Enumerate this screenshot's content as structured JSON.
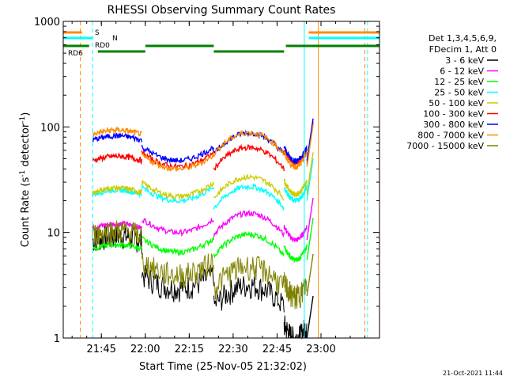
{
  "chart_data": {
    "type": "line",
    "title": "RHESSI Observing Summary Count Rates",
    "xlabel": "Start Time (25-Nov-05 21:32:02)",
    "ylabel_main": "Count Rate (s",
    "ylabel_sup1": "-1",
    "ylabel_mid": " detector",
    "ylabel_sup2": "-1",
    "ylabel_end": ")",
    "y_scale": "log",
    "ylim": [
      1,
      1000
    ],
    "xlim_minutes": [
      21.533,
      23.333
    ],
    "x_ticks": [
      {
        "label": "21:45",
        "t": 21.75
      },
      {
        "label": "22:00",
        "t": 22.0
      },
      {
        "label": "22:15",
        "t": 22.25
      },
      {
        "label": "22:30",
        "t": 22.5
      },
      {
        "label": "22:45",
        "t": 22.75
      },
      {
        "label": "23:00",
        "t": 23.0
      }
    ],
    "y_ticks": [
      {
        "label": "1",
        "v": 1
      },
      {
        "label": "10",
        "v": 10
      },
      {
        "label": "100",
        "v": 100
      },
      {
        "label": "1000",
        "v": 1000
      }
    ],
    "legend_header": [
      "Det 1,3,4,5,6,9,",
      "FDecim 1, Att 0"
    ],
    "series": [
      {
        "name": "3 - 6 keV",
        "color": "#000000",
        "level": [
          8.5,
          3.0,
          2.0,
          1.0
        ]
      },
      {
        "name": "6 - 12 keV",
        "color": "#ff00ff",
        "level": [
          11,
          10,
          9.5,
          8.5
        ]
      },
      {
        "name": "12 - 25 keV",
        "color": "#00ff00",
        "level": [
          7,
          6.5,
          6.0,
          5.5
        ]
      },
      {
        "name": "25 - 50 keV",
        "color": "#00ffff",
        "level": [
          23,
          20,
          17,
          20
        ]
      },
      {
        "name": "50 - 100 keV",
        "color": "#cccc00",
        "level": [
          24,
          22,
          21,
          23
        ]
      },
      {
        "name": "100 - 300 keV",
        "color": "#ff0000",
        "level": [
          48,
          42,
          40,
          45
        ]
      },
      {
        "name": "300 - 800 keV",
        "color": "#0000ff",
        "level": [
          75,
          48,
          55,
          48
        ]
      },
      {
        "name": "800 - 7000 keV",
        "color": "#ff8c00",
        "level": [
          85,
          40,
          55,
          42
        ]
      },
      {
        "name": "7000 - 15000 keV",
        "color": "#808000",
        "level": [
          9.5,
          4.0,
          3.0,
          2.5
        ]
      }
    ],
    "flags": [
      {
        "label": "S",
        "color": "#ff8c00"
      },
      {
        "label": "N",
        "color": "#00ffff"
      },
      {
        "label": "RD0",
        "color": "#008000"
      },
      {
        "label": "RD6",
        "color": "#008000"
      }
    ],
    "timestamp": "21-Oct-2021 11:44"
  }
}
